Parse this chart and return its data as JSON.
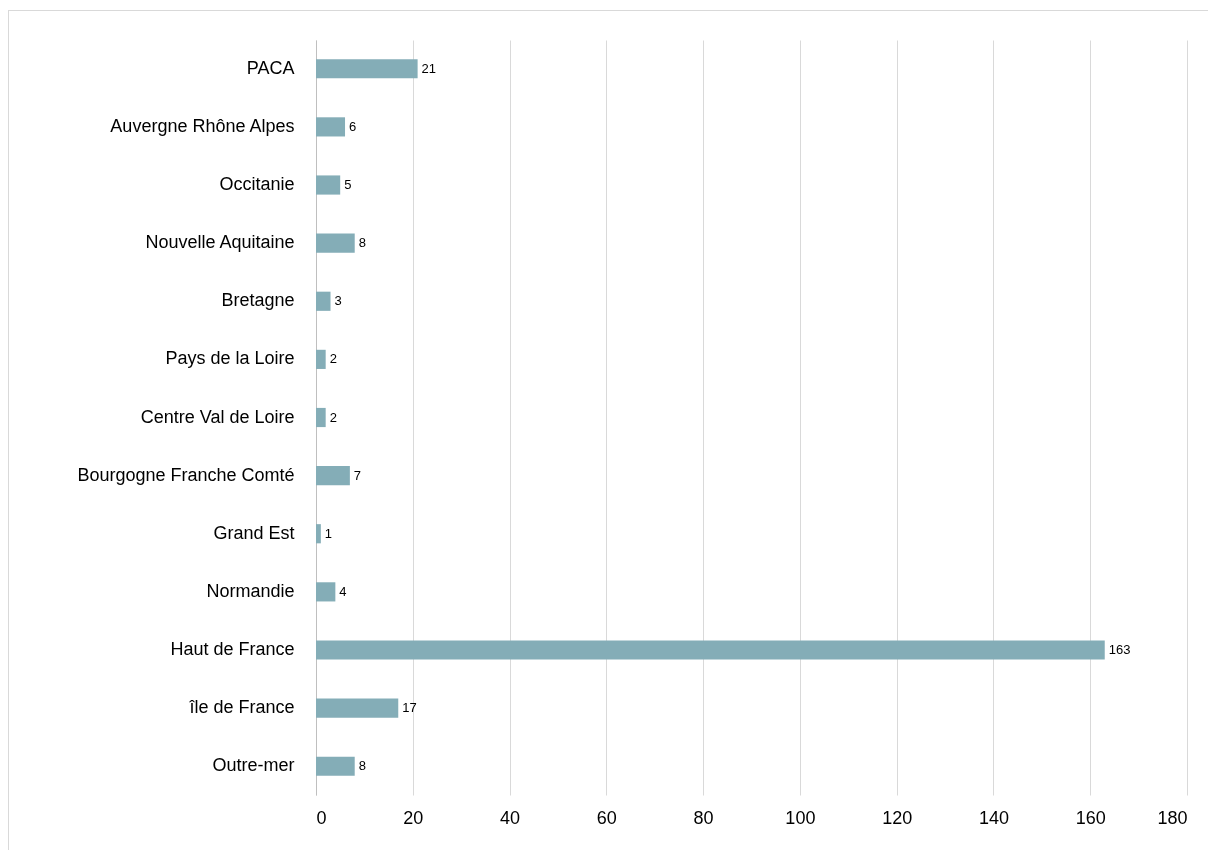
{
  "chart_data": {
    "type": "bar",
    "orientation": "horizontal",
    "categories": [
      "PACA",
      "Auvergne Rhône Alpes",
      "Occitanie",
      "Nouvelle Aquitaine",
      "Bretagne",
      "Pays de la Loire",
      "Centre Val de Loire",
      "Bourgogne Franche Comté",
      "Grand Est",
      "Normandie",
      "Haut de France",
      "île de France",
      "Outre-mer"
    ],
    "values": [
      21,
      6,
      5,
      8,
      3,
      2,
      2,
      7,
      1,
      4,
      163,
      17,
      8
    ],
    "color": "#84adb7",
    "xlim": [
      0,
      180
    ],
    "xticks": [
      0,
      20,
      40,
      60,
      80,
      100,
      120,
      140,
      160,
      180
    ],
    "grid": "x",
    "data_labels": true
  }
}
